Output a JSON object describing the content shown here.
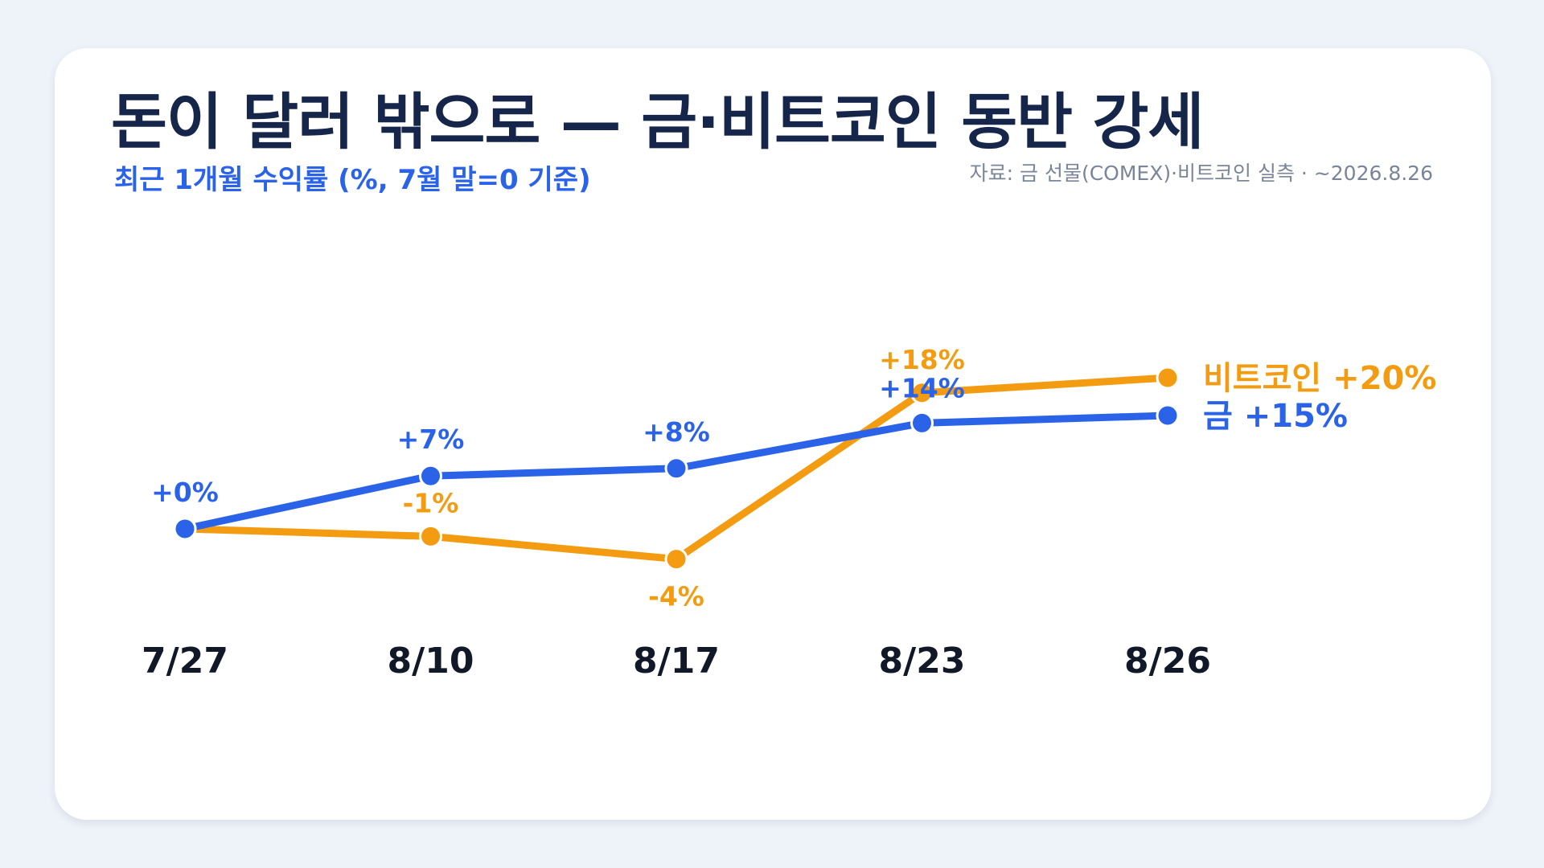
{
  "header": {
    "title": "돈이 달러 밖으로 — 금·비트코인 동반 강세",
    "subtitle": "최근 1개월 수익률 (%, 7월 말=0 기준)",
    "source": "자료: 금 선물(COMEX)·비트코인 실측 · ~2026.8.26"
  },
  "chart_data": {
    "type": "line",
    "title": "돈이 달러 밖으로 — 금·비트코인 동반 강세",
    "subtitle": "최근 1개월 수익률 (%, 7월 말=0 기준)",
    "x": [
      "7/27",
      "8/10",
      "8/17",
      "8/23",
      "8/26"
    ],
    "series": [
      {
        "name": "금",
        "color": "#2a63e8",
        "values": [
          0,
          7,
          8,
          14,
          15
        ],
        "point_labels": [
          "+0%",
          "+7%",
          "+8%",
          "+14%",
          ""
        ],
        "end_label": "금 +15%"
      },
      {
        "name": "비트코인",
        "color": "#f39c12",
        "values": [
          0,
          -1,
          -4,
          18,
          20
        ],
        "point_labels": [
          "",
          "-1%",
          "-4%",
          "+18%",
          ""
        ],
        "end_label": "비트코인 +20%"
      }
    ],
    "xlabel": "",
    "ylabel": "",
    "grid": false,
    "legend": "right, inline at line ends"
  }
}
